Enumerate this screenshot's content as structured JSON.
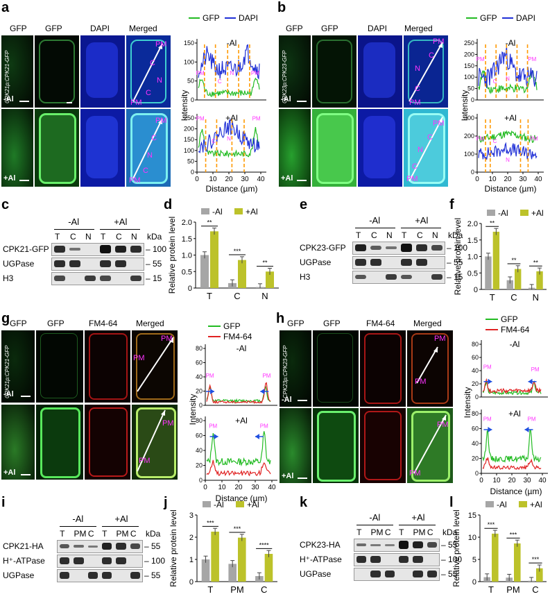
{
  "panel_letters": [
    "a",
    "b",
    "c",
    "d",
    "e",
    "f",
    "g",
    "h",
    "i",
    "j",
    "k",
    "l"
  ],
  "micrograph_headers": {
    "ab": [
      "GFP",
      "GFP",
      "DAPI",
      "Merged"
    ],
    "gh": [
      "GFP",
      "GFP",
      "FM4-64",
      "Merged"
    ]
  },
  "conditions": {
    "minus": "-Al",
    "plus": "+Al"
  },
  "constructs": {
    "a": "CPK21p:CPK21-GFP",
    "b": "CPK23p:CPK23-GFP",
    "g": "CPK21p:CPK21-GFP",
    "h": "CPK23p:CPK23-GFP"
  },
  "region_labels": {
    "pm": "PM",
    "c": "C",
    "n": "N"
  },
  "colors": {
    "gfp": "#22bb22",
    "dapi": "#1f2fd6",
    "fm": "#e02222",
    "minus": "#a6a6a6",
    "plus": "#bcc22a",
    "magenta": "#ff33ff",
    "orange": "#ff9900"
  },
  "profiles": {
    "a": {
      "legend": [
        "GFP",
        "DAPI"
      ],
      "ylabel": "Intensity",
      "xlabel": "Distance (µm)",
      "xticks": [
        "0",
        "10",
        "20",
        "30",
        "40"
      ],
      "minus": {
        "title": "-Al",
        "yticks": [
          "0",
          "50",
          "100",
          "150"
        ]
      },
      "plus": {
        "title": "+Al",
        "yticks": [
          "0",
          "50",
          "100",
          "150",
          "200",
          "250"
        ]
      }
    },
    "b": {
      "legend": [
        "GFP",
        "DAPI"
      ],
      "ylabel": "Intensity",
      "xlabel": "Distance (µm)",
      "xticks": [
        "0",
        "10",
        "20",
        "30",
        "40"
      ],
      "minus": {
        "title": "-Al",
        "yticks": [
          "0",
          "50",
          "100",
          "150",
          "200",
          "250"
        ]
      },
      "plus": {
        "title": "+Al",
        "yticks": [
          "0",
          "100",
          "200",
          "300"
        ]
      }
    },
    "g": {
      "legend": [
        "GFP",
        "FM4-64"
      ],
      "ylabel": "Intensity",
      "xlabel": "Distance (µm)",
      "xticks": [
        "0",
        "10",
        "20",
        "30",
        "40"
      ],
      "minus": {
        "title": "-Al",
        "yticks": [
          "0",
          "20",
          "40",
          "60",
          "80"
        ]
      },
      "plus": {
        "title": "+Al",
        "yticks": [
          "0",
          "20",
          "40",
          "60",
          "80"
        ]
      }
    },
    "h": {
      "legend": [
        "GFP",
        "FM4-64"
      ],
      "ylabel": "Intensity",
      "xlabel": "Distance (µm)",
      "xticks": [
        "0",
        "10",
        "20",
        "30",
        "40"
      ],
      "minus": {
        "title": "-Al",
        "yticks": [
          "0",
          "20",
          "40",
          "60",
          "80"
        ]
      },
      "plus": {
        "title": "+Al",
        "yticks": [
          "0",
          "20",
          "40",
          "60",
          "80"
        ]
      }
    }
  },
  "blots": {
    "c": {
      "groups": [
        "-Al",
        "+Al"
      ],
      "lanes": [
        "T",
        "C",
        "N",
        "T",
        "C",
        "N"
      ],
      "rows": [
        "CPK21-GFP",
        "UGPase",
        "H3"
      ],
      "markers": [
        "100",
        "55",
        "15"
      ],
      "unit": "kDa"
    },
    "e": {
      "groups": [
        "-Al",
        "+Al"
      ],
      "lanes": [
        "T",
        "C",
        "N",
        "T",
        "C",
        "N"
      ],
      "rows": [
        "CPK23-GFP",
        "UGPase",
        "H3"
      ],
      "markers": [
        "100",
        "55",
        "15"
      ],
      "unit": "kDa"
    },
    "i": {
      "groups": [
        "-Al",
        "+Al"
      ],
      "lanes": [
        "T",
        "PM",
        "C",
        "T",
        "PM",
        "C"
      ],
      "rows": [
        "CPK21-HA",
        "H⁺-ATPase",
        "UGPase"
      ],
      "markers": [
        "55",
        "100",
        "55"
      ],
      "unit": "kDa"
    },
    "k": {
      "groups": [
        "-Al",
        "+Al"
      ],
      "lanes": [
        "T",
        "PM",
        "C",
        "T",
        "PM",
        "C"
      ],
      "rows": [
        "CPK23-HA",
        "H⁺-ATPase",
        "UGPase"
      ],
      "markers": [
        "55",
        "100",
        "55"
      ],
      "unit": "kDa"
    }
  },
  "chart_data": [
    {
      "panel": "d",
      "type": "bar",
      "ylabel": "Relative protein level",
      "categories": [
        "T",
        "C",
        "N"
      ],
      "ylim": [
        0,
        2
      ],
      "yticks": [
        "0",
        "0.5",
        "1.0",
        "1.5",
        "2.0"
      ],
      "series": [
        {
          "name": "-Al",
          "values": [
            1.0,
            0.15,
            0.03
          ]
        },
        {
          "name": "+Al",
          "values": [
            1.72,
            0.85,
            0.5
          ]
        }
      ],
      "significance": [
        "**",
        "***",
        "**"
      ]
    },
    {
      "panel": "f",
      "type": "bar",
      "ylabel": "Relative protein level",
      "categories": [
        "T",
        "C",
        "N"
      ],
      "ylim": [
        0,
        2
      ],
      "yticks": [
        "0",
        "0.5",
        "1.0",
        "1.5",
        "2.0"
      ],
      "series": [
        {
          "name": "-Al",
          "values": [
            1.0,
            0.28,
            0.05
          ]
        },
        {
          "name": "+Al",
          "values": [
            1.75,
            0.62,
            0.55
          ]
        }
      ],
      "significance": [
        "**",
        "**",
        "**"
      ]
    },
    {
      "panel": "j",
      "type": "bar",
      "ylabel": "Relative protein level",
      "categories": [
        "T",
        "PM",
        "C"
      ],
      "ylim": [
        0,
        3
      ],
      "yticks": [
        "0",
        "1",
        "2",
        "3"
      ],
      "series": [
        {
          "name": "-Al",
          "values": [
            1.0,
            0.8,
            0.25
          ]
        },
        {
          "name": "+Al",
          "values": [
            2.25,
            1.98,
            1.25
          ]
        }
      ],
      "significance": [
        "***",
        "***",
        "****"
      ]
    },
    {
      "panel": "l",
      "type": "bar",
      "ylabel": "Relative protein level",
      "categories": [
        "T",
        "PM",
        "C"
      ],
      "ylim": [
        0,
        15
      ],
      "yticks": [
        "0",
        "5",
        "10",
        "15"
      ],
      "series": [
        {
          "name": "-Al",
          "values": [
            1.0,
            0.9,
            0.2
          ]
        },
        {
          "name": "+Al",
          "values": [
            10.8,
            8.6,
            3.0
          ]
        }
      ],
      "significance": [
        "***",
        "***",
        "***"
      ]
    }
  ]
}
